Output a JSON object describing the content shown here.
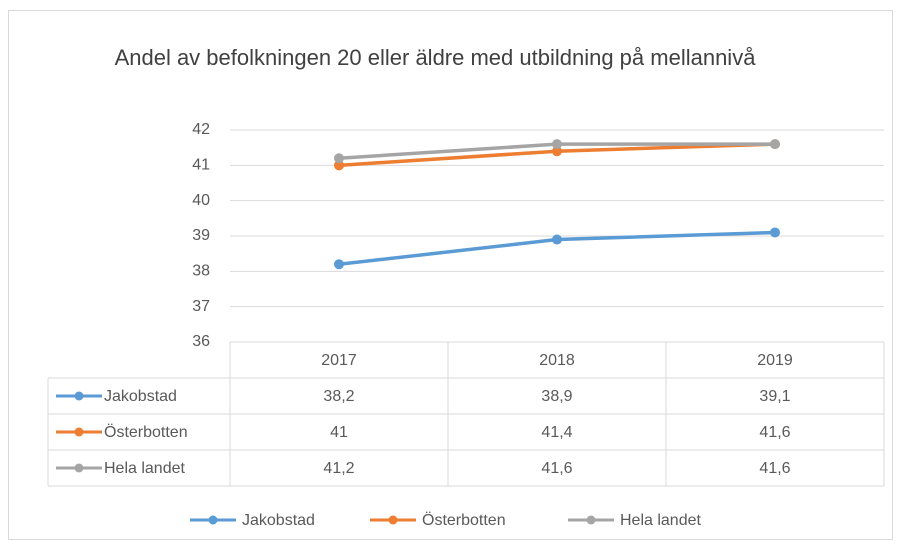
{
  "chart_data": {
    "type": "line",
    "title": "Andel av befolkningen 20 eller äldre med utbildning på mellannivå",
    "categories": [
      "2017",
      "2018",
      "2019"
    ],
    "series": [
      {
        "name": "Jakobstad",
        "color": "#5b9bd5",
        "values": [
          38.2,
          38.9,
          39.1
        ],
        "value_labels": [
          "38,2",
          "38,9",
          "39,1"
        ]
      },
      {
        "name": "Österbotten",
        "color": "#ed7d31",
        "values": [
          41,
          41.4,
          41.6
        ],
        "value_labels": [
          "41",
          "41,4",
          "41,6"
        ]
      },
      {
        "name": "Hela landet",
        "color": "#a5a5a5",
        "values": [
          41.2,
          41.6,
          41.6
        ],
        "value_labels": [
          "41,2",
          "41,6",
          "41,6"
        ]
      }
    ],
    "ylim": [
      36,
      42
    ],
    "yticks": [
      36,
      37,
      38,
      39,
      40,
      41,
      42
    ],
    "grid": true,
    "legend": "bottom"
  }
}
